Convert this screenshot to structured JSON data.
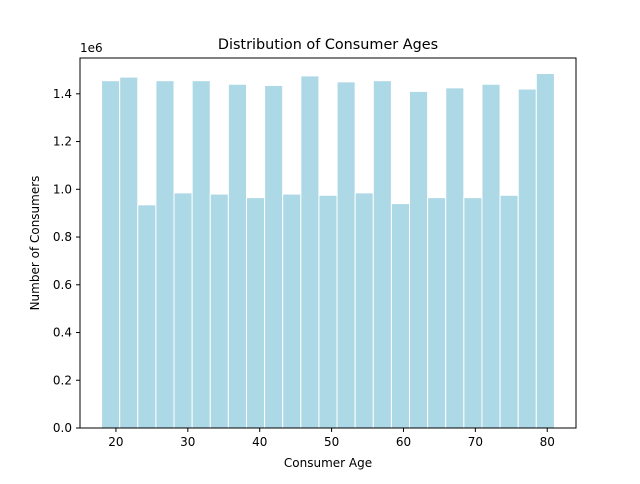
{
  "chart_data": {
    "type": "bar",
    "title": "Distribution of Consumer Ages",
    "xlabel": "Consumer Age",
    "ylabel": "Number of Consumers",
    "offset_label": "1e6",
    "xlim": [
      15,
      84
    ],
    "ylim": [
      0,
      1.55
    ],
    "x_ticks": [
      20,
      30,
      40,
      50,
      60,
      70,
      80
    ],
    "y_ticks": [
      0.0,
      0.2,
      0.4,
      0.6,
      0.8,
      1.0,
      1.2,
      1.4
    ],
    "y_tick_labels": [
      "0.0",
      "0.2",
      "0.4",
      "0.6",
      "0.8",
      "1.0",
      "1.2",
      "1.4"
    ],
    "bin_edges": [
      18,
      20.52,
      23.04,
      25.56,
      28.08,
      30.6,
      33.12,
      35.64,
      38.16,
      40.68,
      43.2,
      45.72,
      48.24,
      50.76,
      53.28,
      55.8,
      58.32,
      60.84,
      63.36,
      65.88,
      68.4,
      70.92,
      73.44,
      75.96,
      78.48,
      81
    ],
    "values": [
      1.455,
      1.47,
      0.935,
      1.455,
      0.985,
      1.455,
      0.98,
      1.44,
      0.965,
      1.435,
      0.98,
      1.475,
      0.975,
      1.45,
      0.985,
      1.455,
      0.94,
      1.41,
      0.965,
      1.425,
      0.965,
      1.44,
      0.975,
      1.42,
      1.485
    ],
    "bar_color": "#add8e6",
    "bar_edge_color": "#ffffff",
    "grid": false
  }
}
